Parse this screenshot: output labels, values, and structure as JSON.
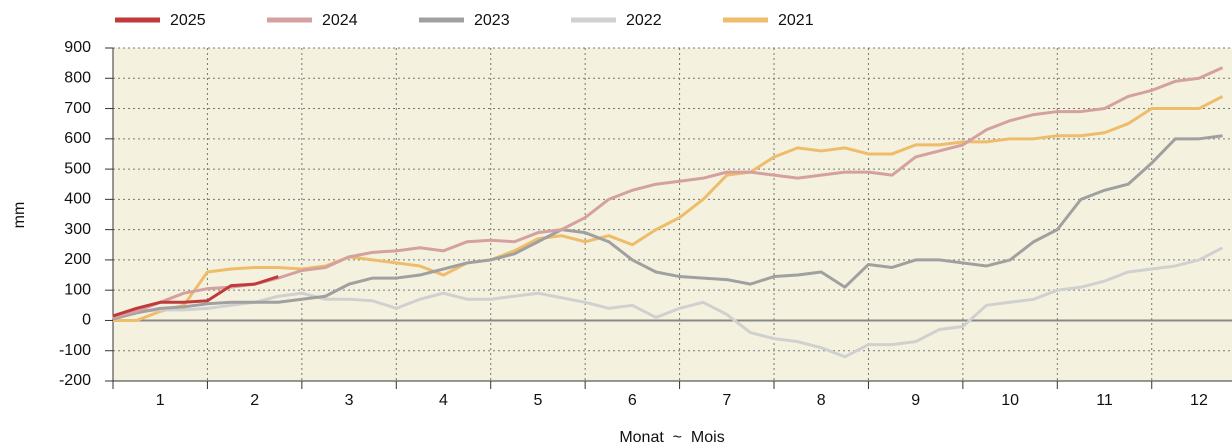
{
  "chart_data": {
    "type": "line",
    "y_label": "mm",
    "x_label": "Monat  ~  Mois",
    "categories": [
      "1",
      "2",
      "3",
      "4",
      "5",
      "6",
      "7",
      "8",
      "9",
      "10",
      "11",
      "12"
    ],
    "x": [
      0,
      0.25,
      0.5,
      0.75,
      1,
      1.25,
      1.5,
      1.75,
      2,
      2.25,
      2.5,
      2.75,
      3,
      3.25,
      3.5,
      3.75,
      4,
      4.25,
      4.5,
      4.75,
      5,
      5.25,
      5.5,
      5.75,
      6,
      6.25,
      6.5,
      6.75,
      7,
      7.25,
      7.5,
      7.75,
      8,
      8.25,
      8.5,
      8.75,
      9,
      9.25,
      9.5,
      9.75,
      10,
      10.25,
      10.5,
      10.75,
      11,
      11.25,
      11.5,
      11.75
    ],
    "xlim": [
      0,
      11.85
    ],
    "ylim": [
      -200,
      900
    ],
    "yticks": [
      -200,
      -100,
      0,
      100,
      200,
      300,
      400,
      500,
      600,
      700,
      800,
      900
    ],
    "grid": true,
    "legend": "top",
    "series": [
      {
        "name": "2025",
        "color": "#c0393b",
        "values": [
          15,
          40,
          60,
          60,
          65,
          115,
          120,
          145,
          null,
          null,
          null,
          null,
          null,
          null,
          null,
          null,
          null,
          null,
          null,
          null,
          null,
          null,
          null,
          null,
          null,
          null,
          null,
          null,
          null,
          null,
          null,
          null,
          null,
          null,
          null,
          null,
          null,
          null,
          null,
          null,
          null,
          null,
          null,
          null,
          null,
          null,
          null,
          null
        ]
      },
      {
        "name": "2024",
        "color": "#d4a0a0",
        "values": [
          10,
          30,
          60,
          90,
          105,
          110,
          120,
          140,
          165,
          175,
          210,
          225,
          230,
          240,
          230,
          260,
          265,
          260,
          290,
          300,
          340,
          400,
          430,
          450,
          460,
          470,
          490,
          490,
          480,
          470,
          480,
          490,
          490,
          480,
          540,
          560,
          580,
          630,
          660,
          680,
          690,
          690,
          700,
          740,
          760,
          790,
          800,
          835
        ]
      },
      {
        "name": "2023",
        "color": "#a0a0a0",
        "values": [
          5,
          25,
          40,
          45,
          55,
          60,
          60,
          60,
          70,
          80,
          120,
          140,
          140,
          150,
          170,
          190,
          200,
          220,
          260,
          300,
          290,
          260,
          200,
          160,
          145,
          140,
          135,
          120,
          145,
          150,
          160,
          110,
          185,
          175,
          200,
          200,
          190,
          180,
          200,
          260,
          300,
          400,
          430,
          450,
          520,
          600,
          600,
          610
        ]
      },
      {
        "name": "2022",
        "color": "#d0d0d0",
        "values": [
          5,
          30,
          35,
          35,
          40,
          50,
          60,
          80,
          90,
          70,
          70,
          65,
          40,
          70,
          90,
          70,
          70,
          80,
          90,
          75,
          60,
          40,
          50,
          10,
          40,
          60,
          20,
          -40,
          -60,
          -70,
          -90,
          -120,
          -80,
          -80,
          -70,
          -30,
          -20,
          50,
          60,
          70,
          100,
          110,
          130,
          160,
          170,
          180,
          200,
          240
        ]
      },
      {
        "name": "2021",
        "color": "#eebc6a",
        "values": [
          0,
          0,
          30,
          50,
          160,
          170,
          175,
          175,
          170,
          180,
          210,
          200,
          190,
          180,
          150,
          190,
          200,
          230,
          270,
          280,
          260,
          280,
          250,
          300,
          340,
          400,
          480,
          490,
          540,
          570,
          560,
          570,
          550,
          550,
          580,
          580,
          590,
          590,
          600,
          600,
          610,
          610,
          620,
          650,
          700,
          700,
          700,
          740
        ]
      }
    ]
  }
}
